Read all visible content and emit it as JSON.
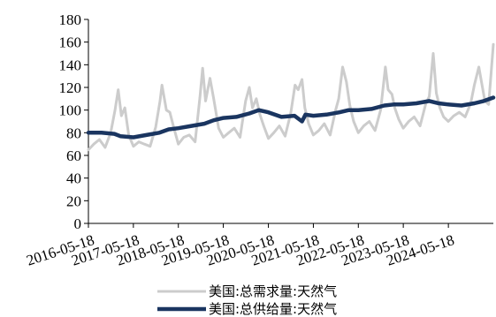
{
  "chart_data": {
    "type": "line",
    "title": "",
    "xlabel": "",
    "ylabel": "",
    "ylim": [
      0,
      180
    ],
    "yticks": [
      0,
      20,
      40,
      60,
      80,
      100,
      120,
      140,
      160,
      180
    ],
    "xticks": [
      "2016-05-18",
      "2017-05-18",
      "2018-05-18",
      "2019-05-18",
      "2020-05-18",
      "2021-05-18",
      "2022-05-18",
      "2023-05-18",
      "2024-05-18"
    ],
    "xlim": [
      "2016-05-18",
      "2025-05-18"
    ],
    "legend_position": "bottom",
    "grid": false,
    "series": [
      {
        "name": "美国:总需求量:天然气",
        "color": "#cccccc",
        "points": [
          [
            "2016-05-18",
            65
          ],
          [
            "2016-07-01",
            70
          ],
          [
            "2016-08-15",
            74
          ],
          [
            "2016-10-01",
            67
          ],
          [
            "2016-11-15",
            80
          ],
          [
            "2016-12-20",
            100
          ],
          [
            "2017-01-15",
            118
          ],
          [
            "2017-02-10",
            95
          ],
          [
            "2017-03-10",
            102
          ],
          [
            "2017-04-10",
            78
          ],
          [
            "2017-05-18",
            68
          ],
          [
            "2017-07-01",
            72
          ],
          [
            "2017-08-15",
            70
          ],
          [
            "2017-10-01",
            68
          ],
          [
            "2017-11-15",
            85
          ],
          [
            "2017-12-20",
            108
          ],
          [
            "2018-01-05",
            122
          ],
          [
            "2018-02-10",
            100
          ],
          [
            "2018-03-10",
            98
          ],
          [
            "2018-04-10",
            85
          ],
          [
            "2018-05-18",
            70
          ],
          [
            "2018-07-01",
            76
          ],
          [
            "2018-08-15",
            78
          ],
          [
            "2018-10-01",
            72
          ],
          [
            "2018-11-10",
            112
          ],
          [
            "2018-12-01",
            137
          ],
          [
            "2018-12-25",
            108
          ],
          [
            "2019-01-30",
            128
          ],
          [
            "2019-03-01",
            110
          ],
          [
            "2019-04-10",
            84
          ],
          [
            "2019-05-18",
            76
          ],
          [
            "2019-07-01",
            80
          ],
          [
            "2019-08-15",
            84
          ],
          [
            "2019-10-01",
            76
          ],
          [
            "2019-11-15",
            108
          ],
          [
            "2019-12-15",
            120
          ],
          [
            "2020-01-10",
            102
          ],
          [
            "2020-02-10",
            110
          ],
          [
            "2020-03-10",
            96
          ],
          [
            "2020-04-10",
            86
          ],
          [
            "2020-05-18",
            75
          ],
          [
            "2020-07-01",
            80
          ],
          [
            "2020-08-15",
            86
          ],
          [
            "2020-10-01",
            77
          ],
          [
            "2020-11-15",
            97
          ],
          [
            "2020-12-20",
            122
          ],
          [
            "2021-01-15",
            118
          ],
          [
            "2021-02-15",
            127
          ],
          [
            "2021-03-10",
            102
          ],
          [
            "2021-04-10",
            88
          ],
          [
            "2021-05-18",
            78
          ],
          [
            "2021-07-01",
            82
          ],
          [
            "2021-08-15",
            88
          ],
          [
            "2021-10-01",
            78
          ],
          [
            "2021-11-15",
            100
          ],
          [
            "2021-12-10",
            110
          ],
          [
            "2022-01-10",
            138
          ],
          [
            "2022-02-10",
            125
          ],
          [
            "2022-03-10",
            104
          ],
          [
            "2022-04-10",
            90
          ],
          [
            "2022-05-18",
            80
          ],
          [
            "2022-07-01",
            86
          ],
          [
            "2022-08-15",
            90
          ],
          [
            "2022-10-01",
            82
          ],
          [
            "2022-11-15",
            100
          ],
          [
            "2022-12-24",
            138
          ],
          [
            "2023-01-15",
            118
          ],
          [
            "2023-02-15",
            114
          ],
          [
            "2023-03-10",
            102
          ],
          [
            "2023-04-10",
            92
          ],
          [
            "2023-05-18",
            84
          ],
          [
            "2023-07-01",
            90
          ],
          [
            "2023-08-15",
            94
          ],
          [
            "2023-10-01",
            86
          ],
          [
            "2023-11-15",
            105
          ],
          [
            "2023-12-15",
            112
          ],
          [
            "2024-01-16",
            150
          ],
          [
            "2024-02-10",
            115
          ],
          [
            "2024-03-10",
            102
          ],
          [
            "2024-04-10",
            94
          ],
          [
            "2024-05-18",
            90
          ],
          [
            "2024-07-01",
            95
          ],
          [
            "2024-08-15",
            98
          ],
          [
            "2024-10-01",
            94
          ],
          [
            "2024-11-15",
            106
          ],
          [
            "2024-12-15",
            122
          ],
          [
            "2025-01-20",
            138
          ],
          [
            "2025-03-10",
            108
          ],
          [
            "2025-04-10",
            105
          ],
          [
            "2025-05-18",
            158
          ]
        ]
      },
      {
        "name": "美国:总供给量:天然气",
        "color": "#1a3560",
        "points": [
          [
            "2016-05-18",
            80
          ],
          [
            "2016-09-01",
            80
          ],
          [
            "2016-12-15",
            79
          ],
          [
            "2017-02-01",
            77
          ],
          [
            "2017-05-18",
            76
          ],
          [
            "2017-09-01",
            78
          ],
          [
            "2017-12-15",
            80
          ],
          [
            "2018-03-01",
            83
          ],
          [
            "2018-05-18",
            84
          ],
          [
            "2018-09-01",
            86
          ],
          [
            "2018-12-15",
            88
          ],
          [
            "2019-03-01",
            91
          ],
          [
            "2019-05-18",
            93
          ],
          [
            "2019-09-01",
            94
          ],
          [
            "2019-12-15",
            97
          ],
          [
            "2020-03-01",
            100
          ],
          [
            "2020-05-18",
            98
          ],
          [
            "2020-09-01",
            94
          ],
          [
            "2020-12-15",
            95
          ],
          [
            "2021-02-15",
            90
          ],
          [
            "2021-03-15",
            96
          ],
          [
            "2021-05-18",
            95
          ],
          [
            "2021-09-01",
            96
          ],
          [
            "2021-12-15",
            98
          ],
          [
            "2022-03-01",
            100
          ],
          [
            "2022-05-18",
            100
          ],
          [
            "2022-09-01",
            101
          ],
          [
            "2022-12-15",
            104
          ],
          [
            "2023-03-01",
            105
          ],
          [
            "2023-05-18",
            105
          ],
          [
            "2023-09-01",
            106
          ],
          [
            "2023-12-15",
            108
          ],
          [
            "2024-03-01",
            106
          ],
          [
            "2024-05-18",
            105
          ],
          [
            "2024-09-01",
            104
          ],
          [
            "2024-12-15",
            106
          ],
          [
            "2025-03-01",
            108
          ],
          [
            "2025-05-18",
            111
          ]
        ]
      }
    ]
  }
}
